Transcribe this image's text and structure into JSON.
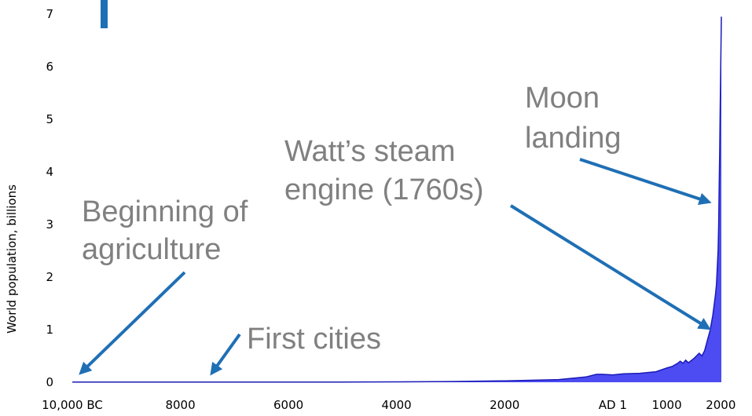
{
  "chart_data": {
    "type": "area",
    "ylabel": "World population, billions",
    "x": [
      -10000,
      -8000,
      -6000,
      -5000,
      -4000,
      -3000,
      -2000,
      -1000,
      -500,
      -300,
      -200,
      0,
      200,
      500,
      800,
      1000,
      1100,
      1200,
      1250,
      1300,
      1350,
      1400,
      1500,
      1600,
      1650,
      1700,
      1750,
      1800,
      1850,
      1900,
      1920,
      1940,
      1950,
      1960,
      1970,
      1980,
      1990,
      2000,
      2010
    ],
    "values": [
      0.004,
      0.005,
      0.005,
      0.005,
      0.007,
      0.014,
      0.027,
      0.05,
      0.1,
      0.15,
      0.15,
      0.14,
      0.16,
      0.17,
      0.2,
      0.27,
      0.3,
      0.36,
      0.4,
      0.36,
      0.42,
      0.37,
      0.45,
      0.55,
      0.5,
      0.6,
      0.79,
      0.98,
      1.26,
      1.65,
      1.86,
      2.3,
      2.52,
      3.0,
      3.7,
      4.4,
      5.3,
      6.1,
      6.95
    ],
    "color": "#4c4cf2",
    "line_color": "#1a1ab8",
    "xlim": [
      -10000,
      2010
    ],
    "xticks": [
      {
        "value": -10000,
        "label": "10,000 BC"
      },
      {
        "value": -8000,
        "label": "8000"
      },
      {
        "value": -6000,
        "label": "6000"
      },
      {
        "value": -4000,
        "label": "4000"
      },
      {
        "value": -2000,
        "label": "2000"
      },
      {
        "value": 1,
        "label": "AD 1"
      },
      1000,
      2000
    ],
    "ylim": [
      0,
      7
    ],
    "yticks": [
      0,
      1,
      2,
      3,
      4,
      5,
      6,
      7
    ],
    "annotations": [
      {
        "lines": [
          "Beginning of",
          "agriculture"
        ]
      },
      {
        "lines": [
          "First cities"
        ]
      },
      {
        "lines": [
          "Watt’s steam",
          "engine (1760s)"
        ]
      },
      {
        "lines": [
          "Moon",
          "landing"
        ]
      }
    ]
  }
}
